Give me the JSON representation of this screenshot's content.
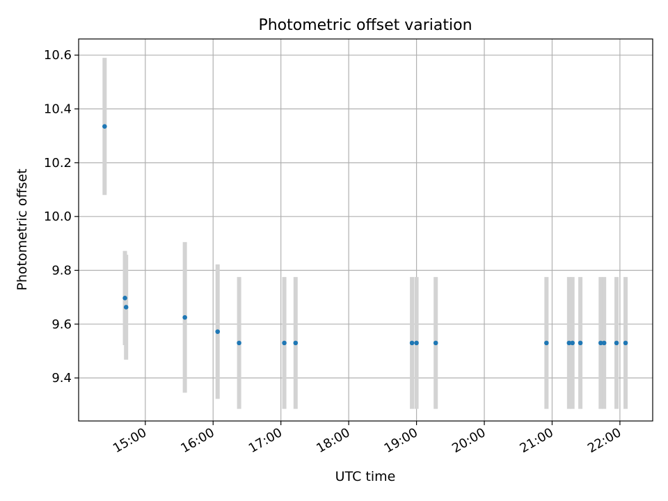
{
  "chart_data": {
    "type": "scatter",
    "title": "Photometric offset variation",
    "xlabel": "UTC time",
    "ylabel": "Photometric offset",
    "x_tick_labels": [
      "15:00",
      "16:00",
      "17:00",
      "18:00",
      "19:00",
      "20:00",
      "21:00",
      "22:00"
    ],
    "y_tick_labels": [
      "9.4",
      "9.6",
      "9.8",
      "10.0",
      "10.2",
      "10.4",
      "10.6"
    ],
    "xlim": [
      "14:01",
      "22:29"
    ],
    "ylim": [
      9.24,
      10.66
    ],
    "grid": true,
    "errorbar_color": "#d3d3d3",
    "marker_color": "#1f77b4",
    "points": [
      {
        "t": "14:24",
        "y": 10.335,
        "err": 0.255
      },
      {
        "t": "14:42",
        "y": 9.697,
        "err": 0.175
      },
      {
        "t": "14:43",
        "y": 9.663,
        "err": 0.195
      },
      {
        "t": "15:35",
        "y": 9.625,
        "err": 0.28
      },
      {
        "t": "16:04",
        "y": 9.572,
        "err": 0.25
      },
      {
        "t": "16:23",
        "y": 9.53,
        "err": 0.245
      },
      {
        "t": "17:03",
        "y": 9.53,
        "err": 0.245
      },
      {
        "t": "17:13",
        "y": 9.53,
        "err": 0.245
      },
      {
        "t": "18:56",
        "y": 9.53,
        "err": 0.245
      },
      {
        "t": "19:00",
        "y": 9.53,
        "err": 0.245
      },
      {
        "t": "19:17",
        "y": 9.53,
        "err": 0.245
      },
      {
        "t": "20:55",
        "y": 9.53,
        "err": 0.245
      },
      {
        "t": "21:15",
        "y": 9.53,
        "err": 0.245
      },
      {
        "t": "21:18",
        "y": 9.53,
        "err": 0.245
      },
      {
        "t": "21:25",
        "y": 9.53,
        "err": 0.245
      },
      {
        "t": "21:43",
        "y": 9.53,
        "err": 0.245
      },
      {
        "t": "21:46",
        "y": 9.53,
        "err": 0.245
      },
      {
        "t": "21:57",
        "y": 9.53,
        "err": 0.245
      },
      {
        "t": "22:05",
        "y": 9.53,
        "err": 0.245
      }
    ]
  }
}
